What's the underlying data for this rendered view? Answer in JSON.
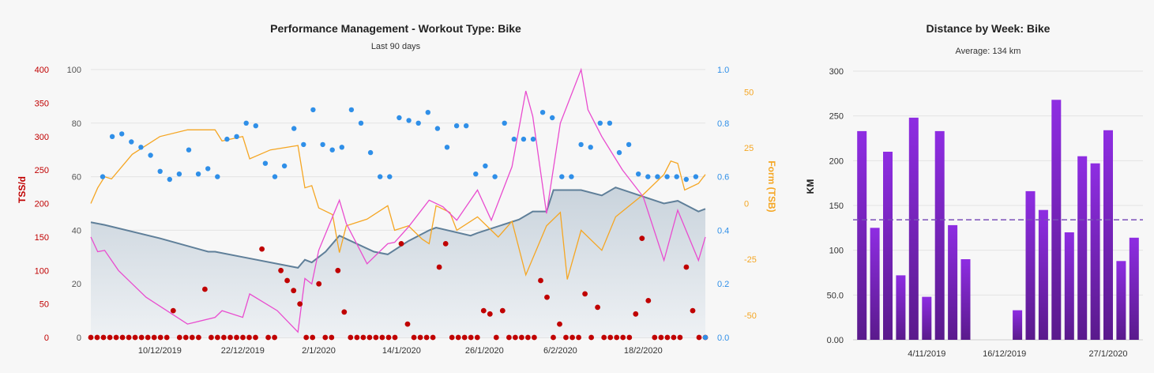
{
  "pmc": {
    "title": "Performance Management - Workout Type: Bike",
    "subtitle": "Last 90 days",
    "left_axis_title": "TSS/d",
    "right_axis_title": "Form (TSB)",
    "colors": {
      "fitness_fill": "#c9d3dc",
      "fitness_line": "#5f7f99",
      "tss_dot": "#c00000",
      "if_dot": "#2f8fe8",
      "fatigue": "#e94ccf",
      "form": "#f5a623",
      "tss_axis": "#c00000",
      "if_axis": "#2f8fe8",
      "form_axis": "#f5a623"
    },
    "axes": {
      "tss_ticks": [
        "400",
        "350",
        "300",
        "250",
        "200",
        "150",
        "100",
        "50",
        "0"
      ],
      "ctl_ticks": [
        "100",
        "80",
        "60",
        "40",
        "20",
        "0"
      ],
      "if_ticks": [
        "1.0",
        "0.8",
        "0.6",
        "0.4",
        "0.2",
        "0.0"
      ],
      "tsb_ticks": [
        "50",
        "25",
        "0",
        "-25",
        "-50"
      ]
    },
    "x_labels": [
      "10/12/2019",
      "22/12/2019",
      "2/1/2020",
      "14/1/2020",
      "26/1/2020",
      "6/2/2020",
      "18/2/2020"
    ]
  },
  "chart_data": [
    {
      "type": "line",
      "title": "Performance Management - Workout Type: Bike",
      "subtitle": "Last 90 days",
      "x_range": [
        "2019-11-30",
        "2020-02-27"
      ],
      "axes": {
        "tss_per_day": {
          "label": "TSS/d",
          "range": [
            0,
            400
          ]
        },
        "fitness": {
          "range": [
            0,
            100
          ]
        },
        "intensity_factor": {
          "range": [
            0.0,
            1.0
          ]
        },
        "form": {
          "label": "Form (TSB)",
          "range": [
            -60,
            60
          ]
        }
      },
      "series": [
        {
          "axis": "fitness",
          "style": "area",
          "points": [
            [
              "2019-11-30",
              43
            ],
            [
              "2019-12-02",
              42
            ],
            [
              "2019-12-10",
              37
            ],
            [
              "2019-12-17",
              32
            ],
            [
              "2019-12-18",
              32
            ],
            [
              "2019-12-22",
              30
            ],
            [
              "2019-12-30",
              26
            ],
            [
              "2019-12-31",
              29
            ],
            [
              "2020-01-01",
              28
            ],
            [
              "2020-01-03",
              32
            ],
            [
              "2020-01-05",
              38
            ],
            [
              "2020-01-10",
              32
            ],
            [
              "2020-01-12",
              31
            ],
            [
              "2020-01-15",
              36
            ],
            [
              "2020-01-18",
              40
            ],
            [
              "2020-01-19",
              41
            ],
            [
              "2020-01-24",
              38
            ],
            [
              "2020-01-25",
              39
            ],
            [
              "2020-01-31",
              44
            ],
            [
              "2020-02-02",
              47
            ],
            [
              "2020-02-04",
              47
            ],
            [
              "2020-02-05",
              55
            ],
            [
              "2020-02-09",
              55
            ],
            [
              "2020-02-12",
              53
            ],
            [
              "2020-02-14",
              56
            ],
            [
              "2020-02-21",
              50
            ],
            [
              "2020-02-23",
              51
            ],
            [
              "2020-02-26",
              47
            ],
            [
              "2020-02-27",
              48
            ]
          ]
        },
        {
          "axis": "form",
          "points": [
            [
              "2019-11-30",
              0
            ],
            [
              "2019-12-01",
              7
            ],
            [
              "2019-12-02",
              12
            ],
            [
              "2019-12-03",
              11
            ],
            [
              "2019-12-06",
              22
            ],
            [
              "2019-12-10",
              30
            ],
            [
              "2019-12-14",
              33
            ],
            [
              "2019-12-18",
              33
            ],
            [
              "2019-12-19",
              28
            ],
            [
              "2019-12-22",
              30
            ],
            [
              "2019-12-23",
              20
            ],
            [
              "2019-12-26",
              24
            ],
            [
              "2019-12-30",
              26
            ],
            [
              "2019-12-31",
              7
            ],
            [
              "2020-01-01",
              8
            ],
            [
              "2020-01-02",
              -2
            ],
            [
              "2020-01-04",
              -5
            ],
            [
              "2020-01-05",
              -22
            ],
            [
              "2020-01-06",
              -10
            ],
            [
              "2020-01-09",
              -7
            ],
            [
              "2020-01-12",
              -1
            ],
            [
              "2020-01-13",
              -12
            ],
            [
              "2020-01-15",
              -10
            ],
            [
              "2020-01-17",
              -16
            ],
            [
              "2020-01-18",
              -18
            ],
            [
              "2020-01-19",
              -1
            ],
            [
              "2020-01-21",
              -4
            ],
            [
              "2020-01-22",
              -12
            ],
            [
              "2020-01-25",
              -6
            ],
            [
              "2020-01-28",
              -15
            ],
            [
              "2020-01-30",
              -8
            ],
            [
              "2020-02-01",
              -32
            ],
            [
              "2020-02-04",
              -10
            ],
            [
              "2020-02-06",
              -4
            ],
            [
              "2020-02-07",
              -34
            ],
            [
              "2020-02-09",
              -12
            ],
            [
              "2020-02-12",
              -21
            ],
            [
              "2020-02-14",
              -6
            ],
            [
              "2020-02-18",
              4
            ],
            [
              "2020-02-21",
              13
            ],
            [
              "2020-02-22",
              19
            ],
            [
              "2020-02-23",
              18
            ],
            [
              "2020-02-24",
              6
            ],
            [
              "2020-02-26",
              9
            ],
            [
              "2020-02-27",
              13
            ]
          ]
        },
        {
          "axis": "tss_per_day",
          "points": [
            [
              "2019-11-30",
              150
            ],
            [
              "2019-12-01",
              128
            ],
            [
              "2019-12-02",
              130
            ],
            [
              "2019-12-04",
              100
            ],
            [
              "2019-12-06",
              80
            ],
            [
              "2019-12-08",
              60
            ],
            [
              "2019-12-14",
              20
            ],
            [
              "2019-12-18",
              30
            ],
            [
              "2019-12-19",
              40
            ],
            [
              "2019-12-22",
              30
            ],
            [
              "2019-12-23",
              65
            ],
            [
              "2019-12-27",
              40
            ],
            [
              "2019-12-30",
              8
            ],
            [
              "2019-12-31",
              88
            ],
            [
              "2020-01-01",
              80
            ],
            [
              "2020-01-02",
              130
            ],
            [
              "2020-01-04",
              180
            ],
            [
              "2020-01-05",
              205
            ],
            [
              "2020-01-06",
              170
            ],
            [
              "2020-01-09",
              110
            ],
            [
              "2020-01-12",
              140
            ],
            [
              "2020-01-13",
              142
            ],
            [
              "2020-01-15",
              165
            ],
            [
              "2020-01-18",
              205
            ],
            [
              "2020-01-20",
              195
            ],
            [
              "2020-01-22",
              175
            ],
            [
              "2020-01-25",
              220
            ],
            [
              "2020-01-27",
              175
            ],
            [
              "2020-01-30",
              255
            ],
            [
              "2020-02-01",
              368
            ],
            [
              "2020-02-02",
              330
            ],
            [
              "2020-02-04",
              185
            ],
            [
              "2020-02-06",
              320
            ],
            [
              "2020-02-09",
              400
            ],
            [
              "2020-02-10",
              340
            ],
            [
              "2020-02-12",
              300
            ],
            [
              "2020-02-15",
              250
            ],
            [
              "2020-02-18",
              210
            ],
            [
              "2020-02-21",
              115
            ],
            [
              "2020-02-23",
              190
            ],
            [
              "2020-02-26",
              115
            ],
            [
              "2020-02-27",
              150
            ]
          ]
        },
        {
          "axis": "tss_per_day",
          "style": "dots",
          "values": [
            0,
            0,
            0,
            0,
            0,
            0,
            0,
            0,
            0,
            0,
            0,
            0,
            0,
            40,
            0,
            0,
            0,
            0,
            72,
            0,
            0,
            0,
            0,
            0,
            0,
            0,
            0,
            132,
            0,
            0,
            100,
            85,
            70,
            50,
            0,
            0,
            80,
            0,
            0,
            100,
            38,
            0,
            0,
            0,
            0,
            0,
            0,
            0,
            0,
            140,
            20,
            0,
            0,
            0,
            0,
            105,
            140,
            0,
            0,
            0,
            0,
            0,
            40,
            35,
            0,
            40,
            0,
            0,
            0,
            0,
            0,
            85,
            60,
            0,
            20,
            0,
            0,
            0,
            65,
            0,
            45,
            0,
            0,
            0,
            0,
            0,
            35,
            148,
            55,
            0,
            0,
            0,
            0,
            0,
            105,
            40,
            0,
            0
          ]
        },
        {
          "axis": "intensity_factor",
          "style": "dots",
          "values": [
            0.6,
            0.75,
            0.76,
            0.73,
            0.71,
            0.68,
            0.62,
            0.59,
            0.61,
            0.7,
            0.61,
            0.63,
            0.6,
            0.74,
            0.75,
            0.8,
            0.79,
            0.65,
            0.6,
            0.64,
            0.78,
            0.72,
            0.85,
            0.72,
            0.7,
            0.71,
            0.85,
            0.8,
            0.69,
            0.6,
            0.6,
            0.82,
            0.81,
            0.8,
            0.84,
            0.78,
            0.71,
            0.79,
            0.79,
            0.61,
            0.64,
            0.6,
            0.8,
            0.74,
            0.74,
            0.74,
            0.84,
            0.82,
            0.6,
            0.6,
            0.72,
            0.71,
            0.8,
            0.8,
            0.69,
            0.72,
            0.61,
            0.6,
            0.6,
            0.6,
            0.6,
            0.59,
            0.6,
            0.0
          ]
        }
      ]
    },
    {
      "type": "bar",
      "title": "Distance by Week: Bike",
      "subtitle": "Average: 134 km",
      "ylabel": "KM",
      "ylim": [
        0,
        300
      ],
      "average": 134,
      "x_labels": [
        "4/11/2019",
        "16/12/2019",
        "27/1/2020"
      ],
      "values": [
        233,
        125,
        210,
        72,
        248,
        48,
        233,
        128,
        90,
        0,
        0,
        0,
        33,
        166,
        145,
        268,
        120,
        205,
        197,
        234,
        88,
        114
      ]
    }
  ],
  "dist": {
    "title": "Distance by Week: Bike",
    "subtitle": "Average: 134 km",
    "ylabel": "KM",
    "y_ticks": [
      "300",
      "250",
      "200",
      "150",
      "100",
      "50.0",
      "0.00"
    ],
    "x_labels": [
      "4/11/2019",
      "16/12/2019",
      "27/1/2020"
    ],
    "colors": {
      "bar_top": "#8e2de2",
      "bar_bottom": "#5a1a8c",
      "bar_light": "#a86de8",
      "avg_line": "#7b4fb8"
    }
  }
}
